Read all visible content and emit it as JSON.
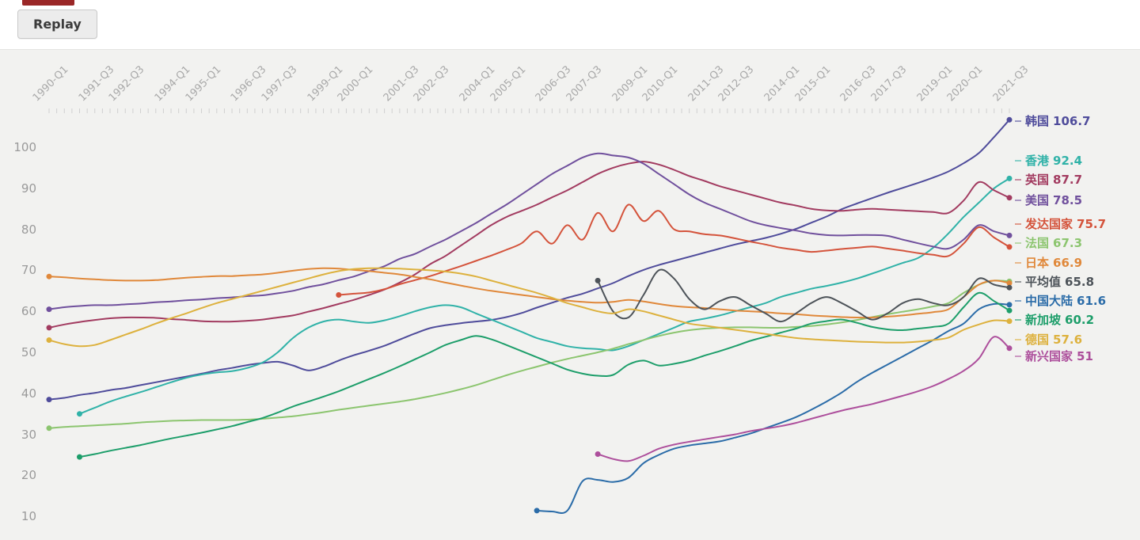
{
  "toolbar": {
    "replay_label": "Replay",
    "fragment_color": "#9a2727"
  },
  "page_colors": {
    "background": "#f2f2f0",
    "topbar_background": "#ffffff"
  },
  "chart_data": {
    "type": "line",
    "title": "",
    "x_unit": "quarter",
    "x_axis": {
      "range": [
        "1990-Q1",
        "2021-Q3"
      ],
      "total_quarters": 127,
      "labels": [
        "1990-Q1",
        "1991-Q3",
        "1992-Q3",
        "1994-Q1",
        "1995-Q1",
        "1996-Q3",
        "1997-Q3",
        "1999-Q1",
        "2000-Q1",
        "2001-Q3",
        "2002-Q3",
        "2004-Q1",
        "2005-Q1",
        "2006-Q3",
        "2007-Q3",
        "2009-Q1",
        "2010-Q1",
        "2011-Q3",
        "2012-Q3",
        "2014-Q1",
        "2015-Q1",
        "2016-Q3",
        "2017-Q3",
        "2019-Q1",
        "2020-Q1",
        "2021-Q3"
      ],
      "label_indices": [
        0,
        6,
        10,
        16,
        20,
        26,
        30,
        36,
        40,
        46,
        50,
        56,
        60,
        66,
        70,
        76,
        80,
        86,
        90,
        96,
        100,
        106,
        110,
        116,
        120,
        126
      ],
      "label_color": "#a8a8a8",
      "tick_color": "#d0d0d0"
    },
    "y_axis": {
      "ticks": [
        10,
        20,
        30,
        40,
        50,
        60,
        70,
        80,
        90,
        100
      ],
      "label_color": "#9a9a9a",
      "grid": false
    },
    "legend_position": "right-end-labels",
    "series": [
      {
        "id": "korea",
        "name": "韩国",
        "end_value": 106.7,
        "end_value_label": "106.7",
        "color": "#4f4c9b",
        "start_index": 0,
        "step": 2,
        "values": [
          38.5,
          38.9,
          39.6,
          40.1,
          40.8,
          41.3,
          42.0,
          42.7,
          43.4,
          44.1,
          44.8,
          45.6,
          46.2,
          46.9,
          47.4,
          47.7,
          46.8,
          45.6,
          46.5,
          48.0,
          49.3,
          50.4,
          51.6,
          53.1,
          54.6,
          55.9,
          56.6,
          57.1,
          57.5,
          57.9,
          58.6,
          59.6,
          60.9,
          62.1,
          63.3,
          64.3,
          65.6,
          66.9,
          68.6,
          70.1,
          71.3,
          72.3,
          73.3,
          74.3,
          75.3,
          76.3,
          77.1,
          77.9,
          78.9,
          80.1,
          81.6,
          83.1,
          84.9,
          86.3,
          87.6,
          88.9,
          90.1,
          91.3,
          92.6,
          94.1,
          96.1,
          98.6,
          102.5,
          106.7
        ]
      },
      {
        "id": "hong-kong",
        "name": "香港",
        "end_value": 92.4,
        "end_value_label": "92.4",
        "color": "#30b2a8",
        "start_index": 4,
        "step": 2,
        "values": [
          35.0,
          36.5,
          38.0,
          39.2,
          40.3,
          41.5,
          42.7,
          43.8,
          44.6,
          45.1,
          45.4,
          46.2,
          47.5,
          50.0,
          53.5,
          56.0,
          57.5,
          58.0,
          57.5,
          57.2,
          57.8,
          58.8,
          60.0,
          61.0,
          61.5,
          61.0,
          59.5,
          58.0,
          56.5,
          55.0,
          53.5,
          52.5,
          51.5,
          51.0,
          50.8,
          50.5,
          51.5,
          53.0,
          54.5,
          56.0,
          57.5,
          58.2,
          59.0,
          60.0,
          61.0,
          62.0,
          63.5,
          64.5,
          65.5,
          66.2,
          67.0,
          68.0,
          69.2,
          70.5,
          71.8,
          73.0,
          75.5,
          79.0,
          83.0,
          86.5,
          90.0,
          92.4
        ]
      },
      {
        "id": "uk",
        "name": "英国",
        "end_value": 87.7,
        "end_value_label": "87.7",
        "color": "#a23b60",
        "start_index": 0,
        "step": 2,
        "values": [
          56.0,
          56.8,
          57.4,
          57.9,
          58.3,
          58.5,
          58.5,
          58.4,
          58.1,
          57.9,
          57.6,
          57.5,
          57.5,
          57.7,
          58.0,
          58.5,
          59.0,
          59.9,
          60.8,
          61.8,
          62.8,
          64.0,
          65.3,
          67.0,
          69.0,
          71.5,
          73.5,
          76.0,
          78.5,
          81.0,
          83.0,
          84.5,
          86.0,
          87.8,
          89.5,
          91.5,
          93.5,
          95.0,
          96.0,
          96.5,
          95.8,
          94.5,
          93.0,
          91.8,
          90.5,
          89.5,
          88.5,
          87.5,
          86.5,
          85.8,
          85.0,
          84.6,
          84.5,
          84.8,
          85.0,
          84.8,
          84.6,
          84.4,
          84.2,
          84.0,
          87.0,
          91.5,
          89.5,
          87.7
        ]
      },
      {
        "id": "us",
        "name": "美国",
        "end_value": 78.5,
        "end_value_label": "78.5",
        "color": "#70509d",
        "start_index": 0,
        "step": 2,
        "values": [
          60.5,
          61.0,
          61.3,
          61.5,
          61.5,
          61.7,
          61.9,
          62.2,
          62.4,
          62.7,
          62.9,
          63.2,
          63.4,
          63.7,
          63.9,
          64.4,
          65.0,
          65.9,
          66.6,
          67.6,
          68.5,
          69.8,
          71.0,
          72.8,
          74.0,
          75.8,
          77.5,
          79.5,
          81.5,
          83.8,
          86.0,
          88.5,
          91.0,
          93.5,
          95.5,
          97.5,
          98.5,
          98.0,
          97.5,
          96.0,
          93.5,
          91.0,
          88.5,
          86.5,
          85.0,
          83.5,
          82.0,
          81.0,
          80.3,
          79.7,
          79.0,
          78.6,
          78.5,
          78.6,
          78.6,
          78.4,
          77.5,
          76.6,
          75.8,
          75.3,
          77.5,
          81.0,
          79.5,
          78.5
        ]
      },
      {
        "id": "developed",
        "name": "发达国家",
        "end_value": 75.7,
        "end_value_label": "75.7",
        "color": "#d4533b",
        "start_index": 38,
        "step": 2,
        "values": [
          64.0,
          64.3,
          64.6,
          65.4,
          66.6,
          67.6,
          68.6,
          69.8,
          71.0,
          72.3,
          73.6,
          75.0,
          76.6,
          79.5,
          76.5,
          81.0,
          77.5,
          84.0,
          79.5,
          86.0,
          82.0,
          84.5,
          80.0,
          79.5,
          78.8,
          78.5,
          77.8,
          77.0,
          76.3,
          75.5,
          75.0,
          74.5,
          74.8,
          75.2,
          75.5,
          75.8,
          75.3,
          74.8,
          74.2,
          73.8,
          73.5,
          76.5,
          80.5,
          78.0,
          75.7
        ]
      },
      {
        "id": "france",
        "name": "法国",
        "end_value": 67.3,
        "end_value_label": "67.3",
        "color": "#8cc56f",
        "start_index": 0,
        "step": 2,
        "values": [
          31.5,
          31.8,
          32.0,
          32.2,
          32.4,
          32.6,
          32.9,
          33.1,
          33.3,
          33.4,
          33.5,
          33.5,
          33.5,
          33.6,
          33.8,
          34.1,
          34.4,
          34.9,
          35.4,
          36.0,
          36.5,
          37.0,
          37.5,
          38.0,
          38.6,
          39.3,
          40.1,
          41.0,
          42.0,
          43.2,
          44.4,
          45.5,
          46.5,
          47.5,
          48.4,
          49.2,
          50.0,
          50.9,
          52.0,
          53.0,
          54.0,
          54.8,
          55.4,
          55.8,
          56.0,
          56.1,
          56.1,
          56.0,
          56.0,
          56.2,
          56.4,
          56.8,
          57.3,
          57.9,
          58.6,
          59.3,
          59.9,
          60.5,
          61.2,
          62.0,
          64.5,
          66.5,
          67.5,
          67.3
        ]
      },
      {
        "id": "japan",
        "name": "日本",
        "end_value": 66.9,
        "end_value_label": "66.9",
        "color": "#e0883a",
        "start_index": 0,
        "step": 2,
        "values": [
          68.5,
          68.3,
          68.0,
          67.8,
          67.6,
          67.5,
          67.5,
          67.6,
          67.9,
          68.2,
          68.4,
          68.6,
          68.6,
          68.8,
          69.0,
          69.4,
          69.9,
          70.3,
          70.5,
          70.4,
          70.1,
          69.8,
          69.4,
          69.0,
          68.4,
          67.8,
          67.0,
          66.3,
          65.6,
          65.0,
          64.5,
          64.0,
          63.5,
          63.0,
          62.6,
          62.3,
          62.1,
          62.3,
          62.8,
          62.4,
          61.8,
          61.3,
          61.0,
          60.8,
          60.5,
          60.2,
          60.0,
          59.8,
          59.5,
          59.3,
          59.0,
          58.8,
          58.6,
          58.5,
          58.5,
          58.7,
          59.0,
          59.4,
          59.8,
          60.5,
          63.5,
          66.5,
          67.5,
          66.9
        ]
      },
      {
        "id": "average",
        "name": "平均值",
        "end_value": 65.8,
        "end_value_label": "65.8",
        "color": "#4d5359",
        "start_index": 72,
        "step": 2,
        "values": [
          67.5,
          60.0,
          58.5,
          64.0,
          70.0,
          68.0,
          63.0,
          60.5,
          62.5,
          63.5,
          61.5,
          59.5,
          57.5,
          59.5,
          62.0,
          63.5,
          62.0,
          60.0,
          58.0,
          59.5,
          62.0,
          63.0,
          62.0,
          61.5,
          63.5,
          68.0,
          66.5,
          65.8
        ]
      },
      {
        "id": "china-mainland",
        "name": "中国大陆",
        "end_value": 61.6,
        "end_value_label": "61.6",
        "color": "#2b6ca8",
        "start_index": 64,
        "step": 2,
        "values": [
          11.4,
          11.2,
          11.4,
          18.6,
          18.9,
          18.4,
          19.4,
          23.0,
          25.0,
          26.5,
          27.3,
          27.8,
          28.3,
          29.2,
          30.2,
          31.5,
          32.8,
          34.2,
          36.0,
          38.0,
          40.2,
          42.8,
          45.0,
          47.0,
          49.0,
          51.0,
          53.0,
          55.2,
          57.0,
          60.5,
          61.8,
          61.6
        ]
      },
      {
        "id": "singapore",
        "name": "新加坡",
        "end_value": 60.2,
        "end_value_label": "60.2",
        "color": "#1d9e6a",
        "start_index": 4,
        "step": 2,
        "values": [
          24.5,
          25.2,
          26.0,
          26.7,
          27.4,
          28.2,
          29.0,
          29.7,
          30.4,
          31.2,
          32.0,
          33.0,
          34.0,
          35.3,
          36.8,
          38.0,
          39.2,
          40.5,
          42.0,
          43.5,
          45.0,
          46.6,
          48.3,
          50.0,
          51.8,
          53.0,
          54.0,
          53.2,
          51.8,
          50.3,
          48.8,
          47.3,
          45.8,
          44.8,
          44.3,
          44.5,
          47.0,
          48.0,
          46.8,
          47.2,
          48.0,
          49.2,
          50.3,
          51.5,
          52.8,
          53.8,
          54.8,
          55.8,
          57.0,
          57.6,
          58.0,
          57.2,
          56.2,
          55.6,
          55.4,
          55.8,
          56.2,
          57.0,
          61.0,
          64.5,
          62.5,
          60.2
        ]
      },
      {
        "id": "germany",
        "name": "德国",
        "end_value": 57.6,
        "end_value_label": "57.6",
        "color": "#ddb13d",
        "start_index": 0,
        "step": 2,
        "values": [
          53.0,
          52.0,
          51.5,
          51.8,
          53.0,
          54.3,
          55.6,
          57.0,
          58.3,
          59.5,
          60.8,
          62.0,
          63.0,
          64.0,
          65.0,
          66.0,
          67.0,
          68.0,
          69.0,
          69.8,
          70.3,
          70.5,
          70.5,
          70.4,
          70.2,
          70.0,
          69.7,
          69.2,
          68.5,
          67.5,
          66.5,
          65.5,
          64.5,
          63.3,
          62.0,
          61.0,
          60.0,
          59.5,
          60.5,
          60.0,
          59.0,
          58.0,
          57.0,
          56.5,
          56.0,
          55.5,
          55.0,
          54.5,
          54.0,
          53.5,
          53.2,
          53.0,
          52.8,
          52.6,
          52.5,
          52.4,
          52.4,
          52.6,
          53.0,
          53.6,
          55.5,
          56.8,
          57.8,
          57.6
        ]
      },
      {
        "id": "emerging",
        "name": "新兴国家",
        "end_value": 51,
        "end_value_label": "51",
        "color": "#ad4f9c",
        "start_index": 72,
        "step": 2,
        "values": [
          25.2,
          24.0,
          23.5,
          24.8,
          26.5,
          27.5,
          28.2,
          28.8,
          29.4,
          30.0,
          30.8,
          31.4,
          32.0,
          32.8,
          33.8,
          34.8,
          35.8,
          36.6,
          37.4,
          38.4,
          39.4,
          40.5,
          41.8,
          43.5,
          45.5,
          48.5,
          53.8,
          51.0
        ]
      }
    ]
  }
}
